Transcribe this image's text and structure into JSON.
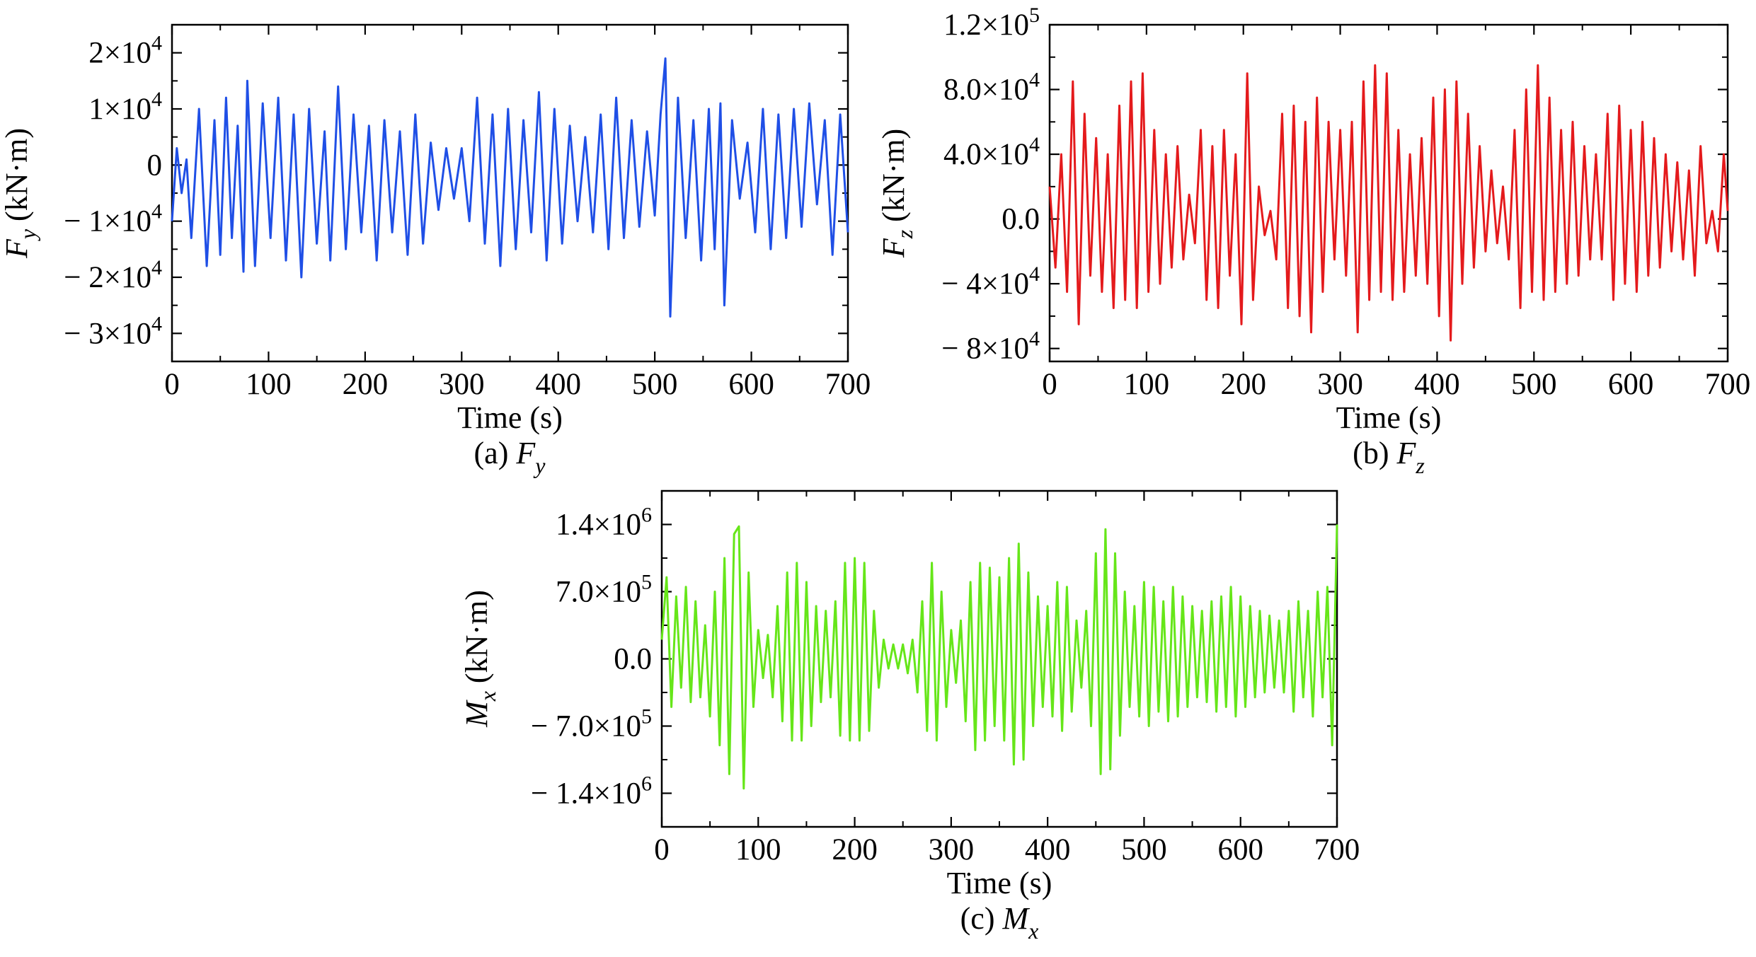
{
  "chart_data": [
    {
      "type": "line",
      "caption_prefix": "(a) ",
      "caption_symbol": "F",
      "caption_sub": "y",
      "xlabel": "Time (s)",
      "ylabel_symbol": "F",
      "ylabel_sub": "y",
      "ylabel_unit": " (kN·m)",
      "xlim": [
        0,
        700
      ],
      "ylim": [
        -35000,
        25000
      ],
      "xticks": [
        0,
        100,
        200,
        300,
        400,
        500,
        600,
        700
      ],
      "xtick_labels": [
        "0",
        "100",
        "200",
        "300",
        "400",
        "500",
        "600",
        "700"
      ],
      "yticks": [
        20000,
        10000,
        0,
        -10000,
        -20000,
        -30000
      ],
      "ytick_labels": [
        {
          "sign": "",
          "mant": "2×10",
          "exp": "4"
        },
        {
          "sign": "",
          "mant": "1×10",
          "exp": "4"
        },
        {
          "sign": "",
          "mant": "0",
          "exp": ""
        },
        {
          "sign": "− ",
          "mant": "1×10",
          "exp": "4"
        },
        {
          "sign": "− ",
          "mant": "2×10",
          "exp": "4"
        },
        {
          "sign": "− ",
          "mant": "3×10",
          "exp": "4"
        }
      ],
      "color": "#1f4fe6",
      "series": [
        {
          "x": [
            0,
            5,
            10,
            15,
            20,
            28,
            36,
            44,
            50,
            56,
            62,
            68,
            74,
            78,
            86,
            94,
            102,
            110,
            118,
            126,
            134,
            142,
            150,
            158,
            164,
            172,
            180,
            188,
            196,
            204,
            212,
            220,
            228,
            236,
            244,
            252,
            260,
            268,
            276,
            284,
            292,
            300,
            308,
            316,
            324,
            332,
            340,
            348,
            356,
            364,
            372,
            380,
            388,
            396,
            404,
            412,
            420,
            428,
            436,
            444,
            452,
            460,
            468,
            476,
            484,
            492,
            500,
            506,
            511,
            516,
            524,
            532,
            540,
            548,
            556,
            562,
            568,
            572,
            580,
            588,
            596,
            604,
            612,
            620,
            628,
            636,
            644,
            652,
            660,
            668,
            676,
            684,
            692,
            700
          ],
          "y": [
            -10000,
            3000,
            -5000,
            1000,
            -13000,
            10000,
            -18000,
            8000,
            -16000,
            12000,
            -13000,
            7000,
            -19000,
            15000,
            -18000,
            11000,
            -13000,
            12000,
            -17000,
            9000,
            -20000,
            10000,
            -14000,
            6000,
            -17000,
            14000,
            -15000,
            9000,
            -12000,
            7000,
            -17000,
            8000,
            -12000,
            6000,
            -16000,
            9000,
            -14000,
            4000,
            -8000,
            3000,
            -6000,
            3000,
            -10000,
            12000,
            -14000,
            9000,
            -18000,
            10000,
            -15000,
            8000,
            -12000,
            13000,
            -17000,
            10000,
            -14000,
            7000,
            -10000,
            5000,
            -12000,
            9000,
            -15000,
            12000,
            -13000,
            8000,
            -11000,
            6000,
            -9000,
            9000,
            19000,
            -27000,
            12000,
            -13000,
            8000,
            -17000,
            10000,
            -15000,
            11000,
            -25000,
            8000,
            -6000,
            4000,
            -12000,
            10000,
            -15000,
            9000,
            -13000,
            10000,
            -11000,
            11000,
            -7000,
            8000,
            -16000,
            9000,
            -12000
          ]
        }
      ]
    },
    {
      "type": "line",
      "caption_prefix": "(b) ",
      "caption_symbol": "F",
      "caption_sub": "z",
      "xlabel": "Time (s)",
      "ylabel_symbol": "F",
      "ylabel_sub": "z",
      "ylabel_unit": " (kN·m)",
      "xlim": [
        0,
        700
      ],
      "ylim": [
        -88000,
        120000
      ],
      "xticks": [
        0,
        100,
        200,
        300,
        400,
        500,
        600,
        700
      ],
      "xtick_labels": [
        "0",
        "100",
        "200",
        "300",
        "400",
        "500",
        "600",
        "700"
      ],
      "yticks": [
        120000,
        80000,
        40000,
        0,
        -40000,
        -80000
      ],
      "ytick_labels": [
        {
          "sign": "",
          "mant": "1.2×10",
          "exp": "5"
        },
        {
          "sign": "",
          "mant": "8.0×10",
          "exp": "4"
        },
        {
          "sign": "",
          "mant": "4.0×10",
          "exp": "4"
        },
        {
          "sign": "",
          "mant": "0.0",
          "exp": ""
        },
        {
          "sign": "− ",
          "mant": "4×10",
          "exp": "4"
        },
        {
          "sign": "− ",
          "mant": "8×10",
          "exp": "4"
        }
      ],
      "color": "#e41a1c",
      "series": [
        {
          "x": [
            0,
            6,
            12,
            18,
            24,
            30,
            36,
            42,
            48,
            54,
            60,
            66,
            72,
            78,
            84,
            90,
            96,
            102,
            108,
            114,
            120,
            126,
            132,
            138,
            144,
            150,
            156,
            162,
            168,
            174,
            180,
            186,
            192,
            198,
            204,
            210,
            216,
            222,
            228,
            234,
            240,
            246,
            252,
            258,
            264,
            270,
            276,
            282,
            288,
            294,
            300,
            306,
            312,
            318,
            324,
            330,
            336,
            342,
            348,
            354,
            360,
            366,
            372,
            378,
            384,
            390,
            396,
            402,
            408,
            414,
            420,
            426,
            432,
            438,
            444,
            450,
            456,
            462,
            468,
            474,
            480,
            486,
            492,
            498,
            504,
            510,
            516,
            522,
            528,
            534,
            540,
            546,
            552,
            558,
            564,
            570,
            576,
            582,
            588,
            594,
            600,
            606,
            612,
            618,
            624,
            630,
            636,
            642,
            648,
            654,
            660,
            666,
            672,
            678,
            684,
            690,
            696,
            700
          ],
          "y": [
            20000,
            -30000,
            40000,
            -45000,
            85000,
            -65000,
            65000,
            -35000,
            50000,
            -45000,
            40000,
            -55000,
            70000,
            -50000,
            85000,
            -55000,
            90000,
            -45000,
            55000,
            -40000,
            40000,
            -30000,
            45000,
            -25000,
            15000,
            -15000,
            55000,
            -50000,
            45000,
            -55000,
            55000,
            -35000,
            40000,
            -65000,
            90000,
            -50000,
            20000,
            -10000,
            5000,
            -25000,
            65000,
            -55000,
            70000,
            -60000,
            60000,
            -70000,
            75000,
            -45000,
            60000,
            -25000,
            55000,
            -35000,
            60000,
            -70000,
            85000,
            -50000,
            95000,
            -45000,
            90000,
            -50000,
            55000,
            -45000,
            40000,
            -35000,
            50000,
            -40000,
            75000,
            -60000,
            80000,
            -75000,
            85000,
            -40000,
            65000,
            -30000,
            45000,
            -20000,
            30000,
            -15000,
            20000,
            -25000,
            55000,
            -55000,
            80000,
            -45000,
            95000,
            -50000,
            75000,
            -45000,
            55000,
            -40000,
            60000,
            -35000,
            45000,
            -25000,
            40000,
            -25000,
            65000,
            -50000,
            70000,
            -40000,
            55000,
            -45000,
            60000,
            -35000,
            50000,
            -30000,
            40000,
            -20000,
            35000,
            -25000,
            30000,
            -35000,
            45000,
            -15000,
            5000,
            -20000,
            40000,
            5000
          ]
        }
      ]
    },
    {
      "type": "line",
      "caption_prefix": "(c) ",
      "caption_symbol": "M",
      "caption_sub": "x",
      "xlabel": "Time (s)",
      "ylabel_symbol": "M",
      "ylabel_sub": "x",
      "ylabel_unit": " (kN·m)",
      "xlim": [
        0,
        700
      ],
      "ylim": [
        -1750000,
        1750000
      ],
      "xticks": [
        0,
        100,
        200,
        300,
        400,
        500,
        600,
        700
      ],
      "xtick_labels": [
        "0",
        "100",
        "200",
        "300",
        "400",
        "500",
        "600",
        "700"
      ],
      "yticks": [
        1400000,
        700000,
        0,
        -700000,
        -1400000
      ],
      "ytick_labels": [
        {
          "sign": "",
          "mant": "1.4×10",
          "exp": "6"
        },
        {
          "sign": "",
          "mant": "7.0×10",
          "exp": "5"
        },
        {
          "sign": "",
          "mant": "0.0",
          "exp": ""
        },
        {
          "sign": "− ",
          "mant": "7.0×10",
          "exp": "5"
        },
        {
          "sign": "− ",
          "mant": "1.4×10",
          "exp": "6"
        }
      ],
      "color": "#66e619",
      "series": [
        {
          "x": [
            0,
            5,
            10,
            15,
            20,
            25,
            30,
            35,
            40,
            45,
            50,
            55,
            60,
            65,
            70,
            75,
            80,
            85,
            90,
            95,
            100,
            105,
            110,
            115,
            120,
            125,
            130,
            135,
            140,
            145,
            150,
            155,
            160,
            165,
            170,
            175,
            180,
            185,
            190,
            195,
            200,
            205,
            210,
            215,
            220,
            225,
            230,
            235,
            240,
            245,
            250,
            255,
            260,
            265,
            270,
            275,
            280,
            285,
            290,
            295,
            300,
            305,
            310,
            315,
            320,
            325,
            330,
            335,
            340,
            345,
            350,
            355,
            360,
            365,
            370,
            375,
            380,
            385,
            390,
            395,
            400,
            405,
            410,
            415,
            420,
            425,
            430,
            435,
            440,
            445,
            450,
            455,
            460,
            465,
            470,
            475,
            480,
            485,
            490,
            495,
            500,
            505,
            510,
            515,
            520,
            525,
            530,
            535,
            540,
            545,
            550,
            555,
            560,
            565,
            570,
            575,
            580,
            585,
            590,
            595,
            600,
            605,
            610,
            615,
            620,
            625,
            630,
            635,
            640,
            645,
            650,
            655,
            660,
            665,
            670,
            675,
            680,
            685,
            690,
            695,
            700
          ],
          "y": [
            200000,
            850000,
            -500000,
            650000,
            -300000,
            750000,
            -450000,
            600000,
            -400000,
            350000,
            -600000,
            700000,
            -900000,
            1050000,
            -1200000,
            1300000,
            1380000,
            -1350000,
            900000,
            -500000,
            300000,
            -200000,
            250000,
            -400000,
            550000,
            -650000,
            900000,
            -850000,
            1000000,
            -850000,
            800000,
            -700000,
            550000,
            -450000,
            500000,
            -400000,
            600000,
            -800000,
            1000000,
            -850000,
            1050000,
            -850000,
            1000000,
            -750000,
            500000,
            -300000,
            200000,
            -100000,
            150000,
            -100000,
            150000,
            -150000,
            200000,
            -350000,
            600000,
            -750000,
            1000000,
            -850000,
            700000,
            -500000,
            300000,
            -250000,
            400000,
            -650000,
            800000,
            -950000,
            1000000,
            -850000,
            950000,
            -700000,
            850000,
            -850000,
            1050000,
            -1100000,
            1200000,
            -1050000,
            900000,
            -700000,
            650000,
            -500000,
            550000,
            -600000,
            800000,
            -750000,
            750000,
            -550000,
            400000,
            -300000,
            500000,
            -700000,
            1100000,
            -1200000,
            1350000,
            -1150000,
            1100000,
            -800000,
            700000,
            -500000,
            550000,
            -600000,
            800000,
            -700000,
            750000,
            -550000,
            600000,
            -650000,
            750000,
            -600000,
            650000,
            -500000,
            550000,
            -400000,
            500000,
            -450000,
            600000,
            -550000,
            650000,
            -500000,
            750000,
            -600000,
            650000,
            -500000,
            550000,
            -400000,
            500000,
            -350000,
            450000,
            -300000,
            400000,
            -350000,
            500000,
            -550000,
            600000,
            -400000,
            500000,
            -600000,
            700000,
            -400000,
            750000,
            -900000,
            1400000
          ]
        }
      ]
    }
  ]
}
